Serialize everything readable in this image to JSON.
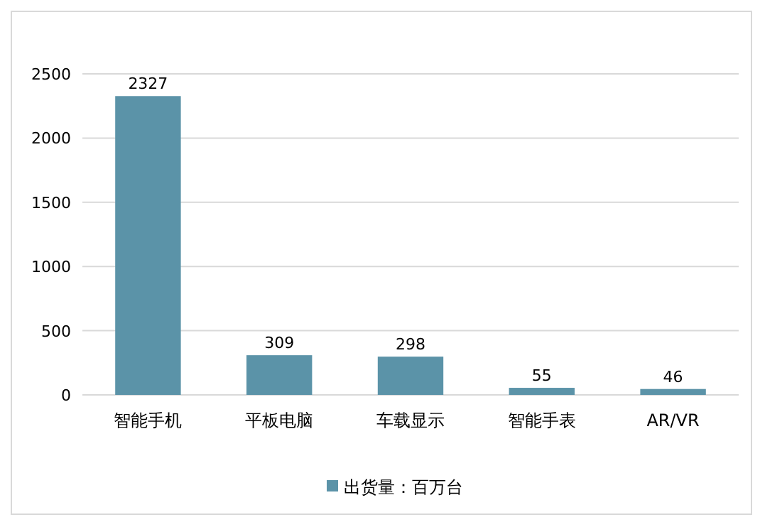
{
  "chart_data": {
    "type": "bar",
    "categories": [
      "智能手机",
      "平板电脑",
      "车载显示",
      "智能手表",
      "AR/VR"
    ],
    "series": [
      {
        "name": "出货量：百万台",
        "color": "#5b93a8",
        "values": [
          2327,
          309,
          298,
          55,
          46
        ]
      }
    ],
    "ylim": [
      0,
      2500
    ],
    "yticks": [
      0,
      500,
      1000,
      1500,
      2000,
      2500
    ],
    "grid": "y",
    "legend": "bottom",
    "data_labels": true
  }
}
